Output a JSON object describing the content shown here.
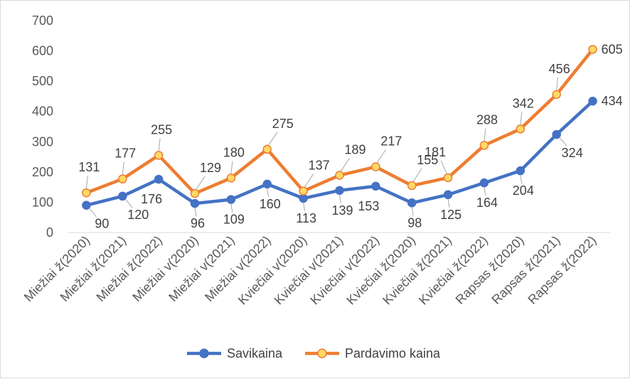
{
  "chart_data": {
    "type": "line",
    "title": "",
    "xlabel": "",
    "ylabel": "",
    "ylim": [
      0,
      700
    ],
    "yticks": [
      0,
      100,
      200,
      300,
      400,
      500,
      600,
      700
    ],
    "grid": false,
    "legend": "bottom",
    "categories": [
      "Miežiai ž(2020)",
      "Miežiai ž(2021)",
      "Miežiai ž(2022)",
      "Miežiai v(2020)",
      "Miežiai v(2021)",
      "Miežiai v(2022)",
      "Kviečiai v(2020)",
      "Kviečiai v(2021)",
      "Kviečiai v(2022)",
      "Kviečiai ž(2020)",
      "Kviečiai ž(2021)",
      "Kviečiai ž(2022)",
      "Rapsas ž(2020)",
      "Rapsas ž(2021)",
      "Rapsas ž(2022)"
    ],
    "series": [
      {
        "name": "Savikaina",
        "color": "#4472C4",
        "marker_fill": "#4472C4",
        "values": [
          90,
          120,
          176,
          96,
          109,
          160,
          113,
          139,
          153,
          98,
          125,
          164,
          204,
          324,
          434
        ]
      },
      {
        "name": "Pardavimo kaina",
        "color": "#ED7D31",
        "marker_fill": "#FFD966",
        "values": [
          131,
          177,
          255,
          129,
          180,
          275,
          137,
          189,
          217,
          155,
          181,
          288,
          342,
          456,
          605
        ]
      }
    ]
  }
}
